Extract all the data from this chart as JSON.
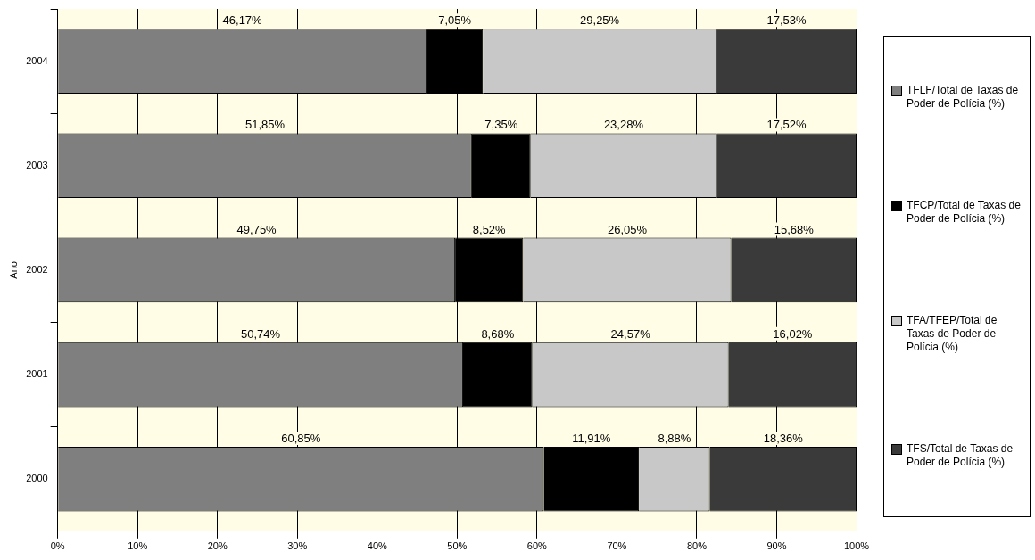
{
  "chart_data": {
    "type": "bar",
    "orientation": "horizontal",
    "stacked": true,
    "ylabel": "Ano",
    "categories": [
      "2004",
      "2003",
      "2002",
      "2001",
      "2000"
    ],
    "series": [
      {
        "name": "TFLF/Total de Taxas de Poder de Polícia (%)",
        "color": "#7f7f7f",
        "values": [
          46.17,
          51.85,
          49.75,
          50.74,
          60.85
        ],
        "value_labels": [
          "46,17%",
          "51,85%",
          "49,75%",
          "50,74%",
          "60,85%"
        ]
      },
      {
        "name": "TFCP/Total de Taxas de Poder de Polícia (%)",
        "color": "#000000",
        "values": [
          7.05,
          7.35,
          8.52,
          8.68,
          11.91
        ],
        "value_labels": [
          "7,05%",
          "7,35%",
          "8,52%",
          "8,68%",
          "11,91%"
        ]
      },
      {
        "name": "TFA/TFEP/Total de Taxas de Poder de Polícia (%)",
        "color": "#c8c8c8",
        "values": [
          29.25,
          23.28,
          26.05,
          24.57,
          8.88
        ],
        "value_labels": [
          "29,25%",
          "23,28%",
          "26,05%",
          "24,57%",
          "8,88%"
        ]
      },
      {
        "name": "TFS/Total de Taxas de Poder de Polícia (%)",
        "color": "#3a3a3a",
        "values": [
          17.53,
          17.52,
          15.68,
          16.02,
          18.36
        ],
        "value_labels": [
          "17,53%",
          "17,52%",
          "15,68%",
          "16,02%",
          "18,36%"
        ]
      }
    ],
    "xlim": [
      0,
      100
    ],
    "xticks": [
      {
        "value": 0,
        "label": "0%"
      },
      {
        "value": 10,
        "label": "10%"
      },
      {
        "value": 20,
        "label": "20%"
      },
      {
        "value": 30,
        "label": "30%"
      },
      {
        "value": 40,
        "label": "40%"
      },
      {
        "value": 50,
        "label": "50%"
      },
      {
        "value": 60,
        "label": "60%"
      },
      {
        "value": 70,
        "label": "70%"
      },
      {
        "value": 80,
        "label": "80%"
      },
      {
        "value": 90,
        "label": "90%"
      },
      {
        "value": 100,
        "label": "100%"
      }
    ],
    "grid": "x",
    "legend": "right"
  }
}
